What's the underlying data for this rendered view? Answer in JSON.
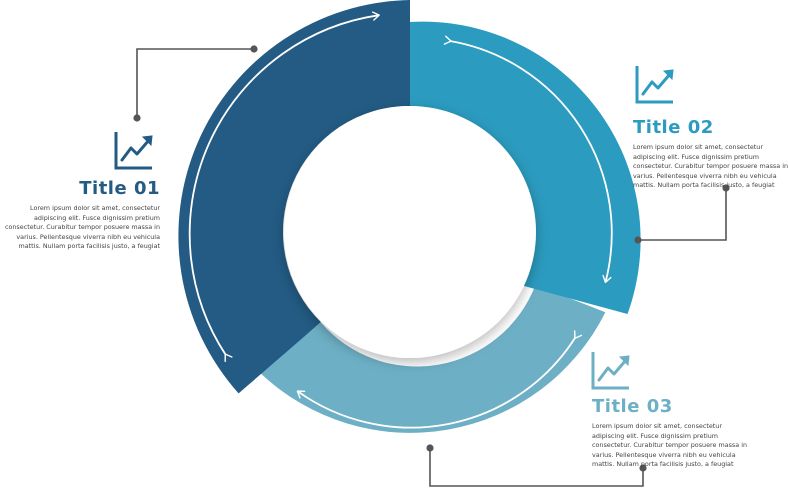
{
  "colors": {
    "segment_1": "#235b84",
    "segment_2": "#2b9bbf",
    "segment_3": "#6dafc5",
    "connector": "#555555",
    "title_1": "#235b84",
    "title_2": "#2b9bbf",
    "title_3": "#6dafc5"
  },
  "icons": [
    "growth-chart-icon",
    "growth-chart-icon",
    "growth-chart-icon"
  ],
  "items": [
    {
      "title": "Title 01",
      "text": "Lorem ipsum dolor sit amet, consectetur adipiscing elit. Fusce dignissim pretium consectetur. Curabitur tempor posuere massa in varius. Pellentesque viverra nibh eu vehicula mattis. Nullam porta facilisis justo, a feugiat"
    },
    {
      "title": "Title 02",
      "text": "Lorem ipsum dolor sit amet, consectetur adipiscing elit. Fusce dignissim pretium consectetur. Curabitur tempor posuere massa in varius. Pellentesque viverra nibh eu vehicula mattis. Nullam porta facilisis justo, a feugiat"
    },
    {
      "title": "Title 03",
      "text": "Lorem ipsum dolor sit amet, consectetur adipiscing elit. Fusce dignissim pretium consectetur. Curabitur tempor posuere massa in varius. Pellentesque viverra nibh eu vehicula mattis. Nullam porta facilisis justo, a feugiat"
    }
  ]
}
